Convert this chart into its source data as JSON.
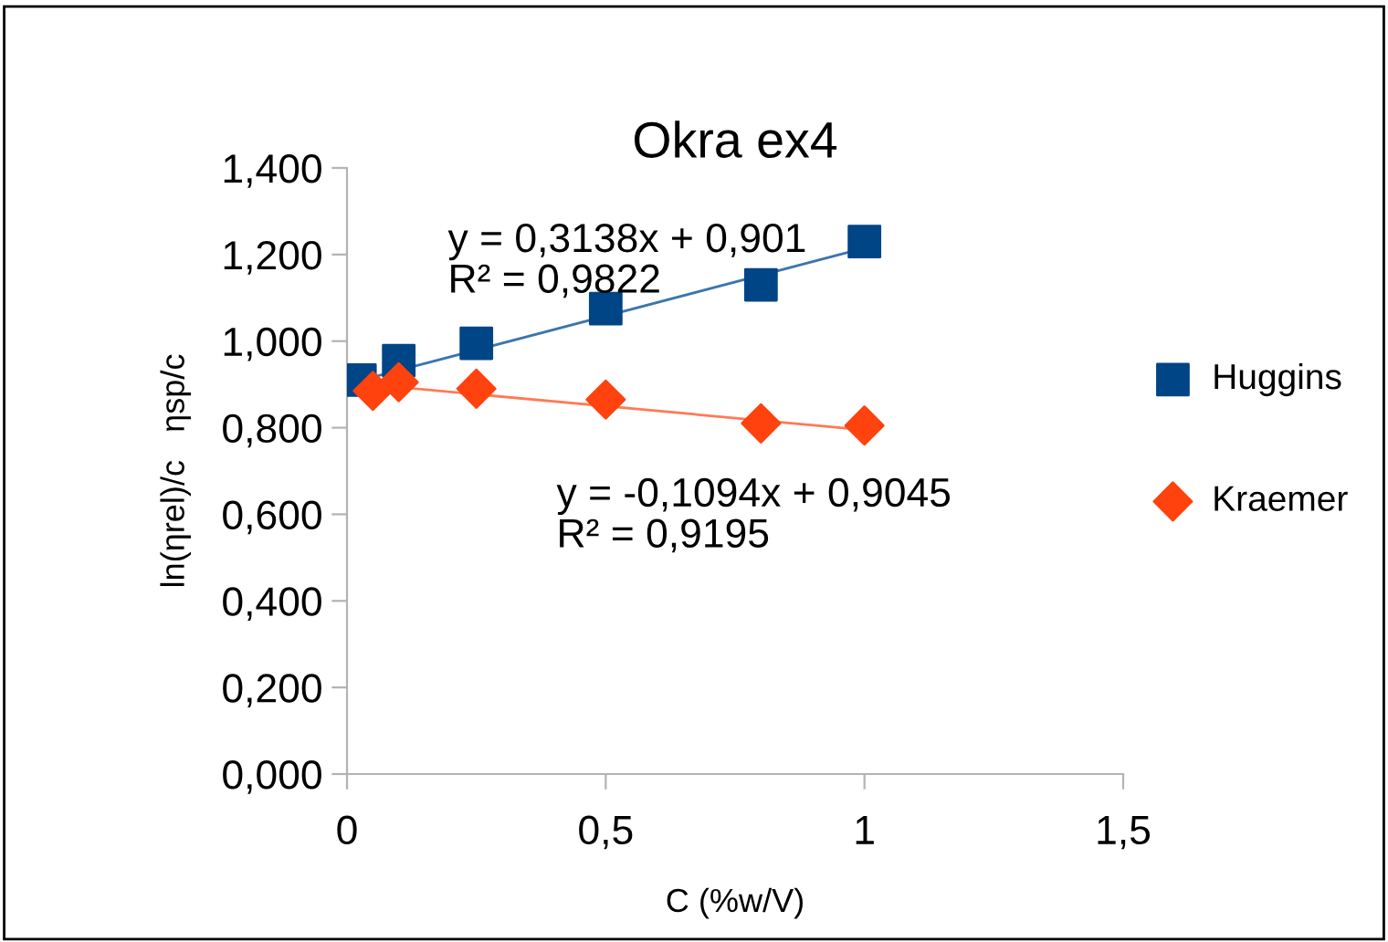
{
  "chart_data": {
    "type": "scatter",
    "title": "Okra ex4",
    "xlabel": "C (%w/V)",
    "ylabel": "ln(ηrel)/c   ηsp/c",
    "series": [
      {
        "name": "Huggins",
        "color": "#004586",
        "marker": "square",
        "x": [
          0.025,
          0.1,
          0.25,
          0.5,
          0.8,
          1.0
        ],
        "values": [
          0.91,
          0.955,
          0.995,
          1.075,
          1.13,
          1.23
        ]
      },
      {
        "name": "Kraemer",
        "color": "#ff420e",
        "marker": "diamond",
        "x": [
          0.05,
          0.1,
          0.25,
          0.5,
          0.8,
          1.0
        ],
        "values": [
          0.885,
          0.905,
          0.89,
          0.865,
          0.81,
          0.805
        ]
      },
      {
        "type": "line",
        "color": "#3b75af",
        "marker": "none",
        "x": [
          0.025,
          1.0
        ],
        "values": [
          0.909,
          1.215
        ]
      },
      {
        "type": "line",
        "color": "#ff7a55",
        "marker": "none",
        "x": [
          0.05,
          1.0
        ],
        "values": [
          0.899,
          0.795
        ]
      }
    ],
    "annotations": [
      "y = 0,3138x + 0,901\nR² = 0,9822",
      "y = -0,1094x + 0,9045\nR² = 0,9195"
    ],
    "xlim": [
      0,
      1.5
    ],
    "xticks": [
      0,
      {
        "value": 0.5,
        "label": "0,5"
      },
      1,
      {
        "value": 1.5,
        "label": "1,5"
      }
    ],
    "ylim": [
      0,
      1.4
    ],
    "yticks": [
      {
        "value": 0,
        "label": "0,000"
      },
      {
        "value": 0.2,
        "label": "0,200"
      },
      {
        "value": 0.4,
        "label": "0,400"
      },
      {
        "value": 0.6,
        "label": "0,600"
      },
      {
        "value": 0.8,
        "label": "0,800"
      },
      {
        "value": 1.0,
        "label": "1,000"
      },
      {
        "value": 1.2,
        "label": "1,200"
      },
      {
        "value": 1.4,
        "label": "1,400"
      }
    ],
    "legend": "right",
    "grid": false
  }
}
